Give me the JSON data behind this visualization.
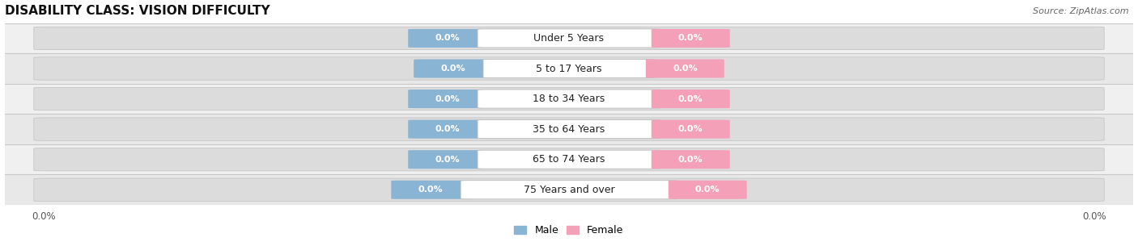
{
  "title": "DISABILITY CLASS: VISION DIFFICULTY",
  "source_text": "Source: ZipAtlas.com",
  "categories": [
    "Under 5 Years",
    "5 to 17 Years",
    "18 to 34 Years",
    "35 to 64 Years",
    "65 to 74 Years",
    "75 Years and over"
  ],
  "male_values": [
    0.0,
    0.0,
    0.0,
    0.0,
    0.0,
    0.0
  ],
  "female_values": [
    0.0,
    0.0,
    0.0,
    0.0,
    0.0,
    0.0
  ],
  "male_color": "#8ab4d4",
  "female_color": "#f4a0b8",
  "male_label": "Male",
  "female_label": "Female",
  "row_bg_even": "#f0f0f0",
  "row_bg_odd": "#e8e8e8",
  "bar_bg_color": "#dcdcdc",
  "separator_color": "#c8c8c8",
  "title_fontsize": 11,
  "source_fontsize": 8,
  "value_fontsize": 8,
  "cat_fontsize": 9,
  "tick_fontsize": 8.5,
  "figsize": [
    14.06,
    3.05
  ],
  "dpi": 100
}
